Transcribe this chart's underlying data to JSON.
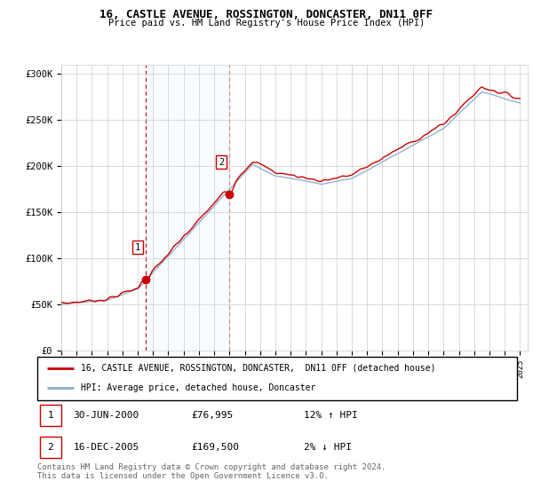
{
  "title": "16, CASTLE AVENUE, ROSSINGTON, DONCASTER, DN11 0FF",
  "subtitle": "Price paid vs. HM Land Registry's House Price Index (HPI)",
  "ylabel_ticks": [
    "£0",
    "£50K",
    "£100K",
    "£150K",
    "£200K",
    "£250K",
    "£300K"
  ],
  "ytick_vals": [
    0,
    50000,
    100000,
    150000,
    200000,
    250000,
    300000
  ],
  "ylim": [
    0,
    310000
  ],
  "xlim_start": 1995.0,
  "xlim_end": 2025.5,
  "sale1_x": 2000.5,
  "sale1_y": 76995,
  "sale2_x": 2005.96,
  "sale2_y": 169500,
  "sale1_label": "1",
  "sale2_label": "2",
  "legend_line1": "16, CASTLE AVENUE, ROSSINGTON, DONCASTER,  DN11 0FF (detached house)",
  "legend_line2": "HPI: Average price, detached house, Doncaster",
  "table_row1": [
    "1",
    "30-JUN-2000",
    "£76,995",
    "12% ↑ HPI"
  ],
  "table_row2": [
    "2",
    "16-DEC-2005",
    "£169,500",
    "2% ↓ HPI"
  ],
  "footer": "Contains HM Land Registry data © Crown copyright and database right 2024.\nThis data is licensed under the Open Government Licence v3.0.",
  "line_color_red": "#cc0000",
  "line_color_blue": "#88aacc",
  "shade_color": "#ddeeff",
  "bg_color": "#ffffff",
  "grid_color": "#cccccc",
  "sale_dot_color": "#cc0000",
  "vline_color": "#cc0000"
}
